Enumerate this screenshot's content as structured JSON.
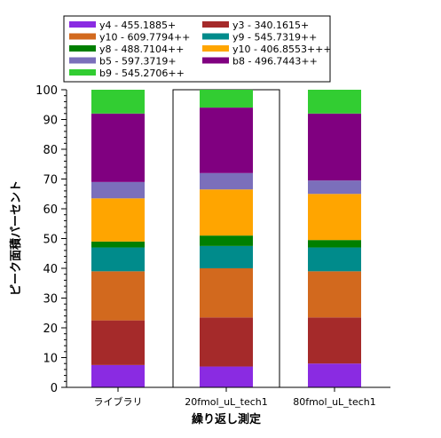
{
  "chart_data": {
    "type": "bar",
    "stacked": true,
    "percent": true,
    "xlabel": "繰り返し測定",
    "ylabel": "ピーク面積パーセント",
    "ylim": [
      0,
      100
    ],
    "yticks": [
      0,
      10,
      20,
      30,
      40,
      50,
      60,
      70,
      80,
      90,
      100
    ],
    "categories": [
      "ライブラリ",
      "20fmol_uL_tech1",
      "80fmol_uL_tech1"
    ],
    "selected_category": "20fmol_uL_tech1",
    "legend_position": "top",
    "series": [
      {
        "name": "y4 - 455.1885+",
        "color": "#8A2BE2",
        "values": [
          7.5,
          7.0,
          8.0
        ]
      },
      {
        "name": "y3 - 340.1615+",
        "color": "#A52A2A",
        "values": [
          15.0,
          16.5,
          15.5
        ]
      },
      {
        "name": "y10 - 609.7794++",
        "color": "#D2691E",
        "values": [
          16.5,
          16.5,
          15.5
        ]
      },
      {
        "name": "y9 - 545.7319++",
        "color": "#008B8B",
        "values": [
          8.0,
          7.5,
          8.0
        ]
      },
      {
        "name": "y8 - 488.7104++",
        "color": "#007F00",
        "values": [
          2.0,
          3.5,
          2.5
        ]
      },
      {
        "name": "y10 - 406.8553+++",
        "color": "#FFA500",
        "values": [
          14.5,
          15.5,
          15.5
        ]
      },
      {
        "name": "b5 - 597.3719+",
        "color": "#7B6FBB",
        "values": [
          5.5,
          5.5,
          4.5
        ]
      },
      {
        "name": "b8 - 496.7443++",
        "color": "#800080",
        "values": [
          23.0,
          22.0,
          22.5
        ]
      },
      {
        "name": "b9 - 545.2706++",
        "color": "#32CD32",
        "values": [
          8.0,
          6.0,
          8.0
        ]
      }
    ]
  }
}
